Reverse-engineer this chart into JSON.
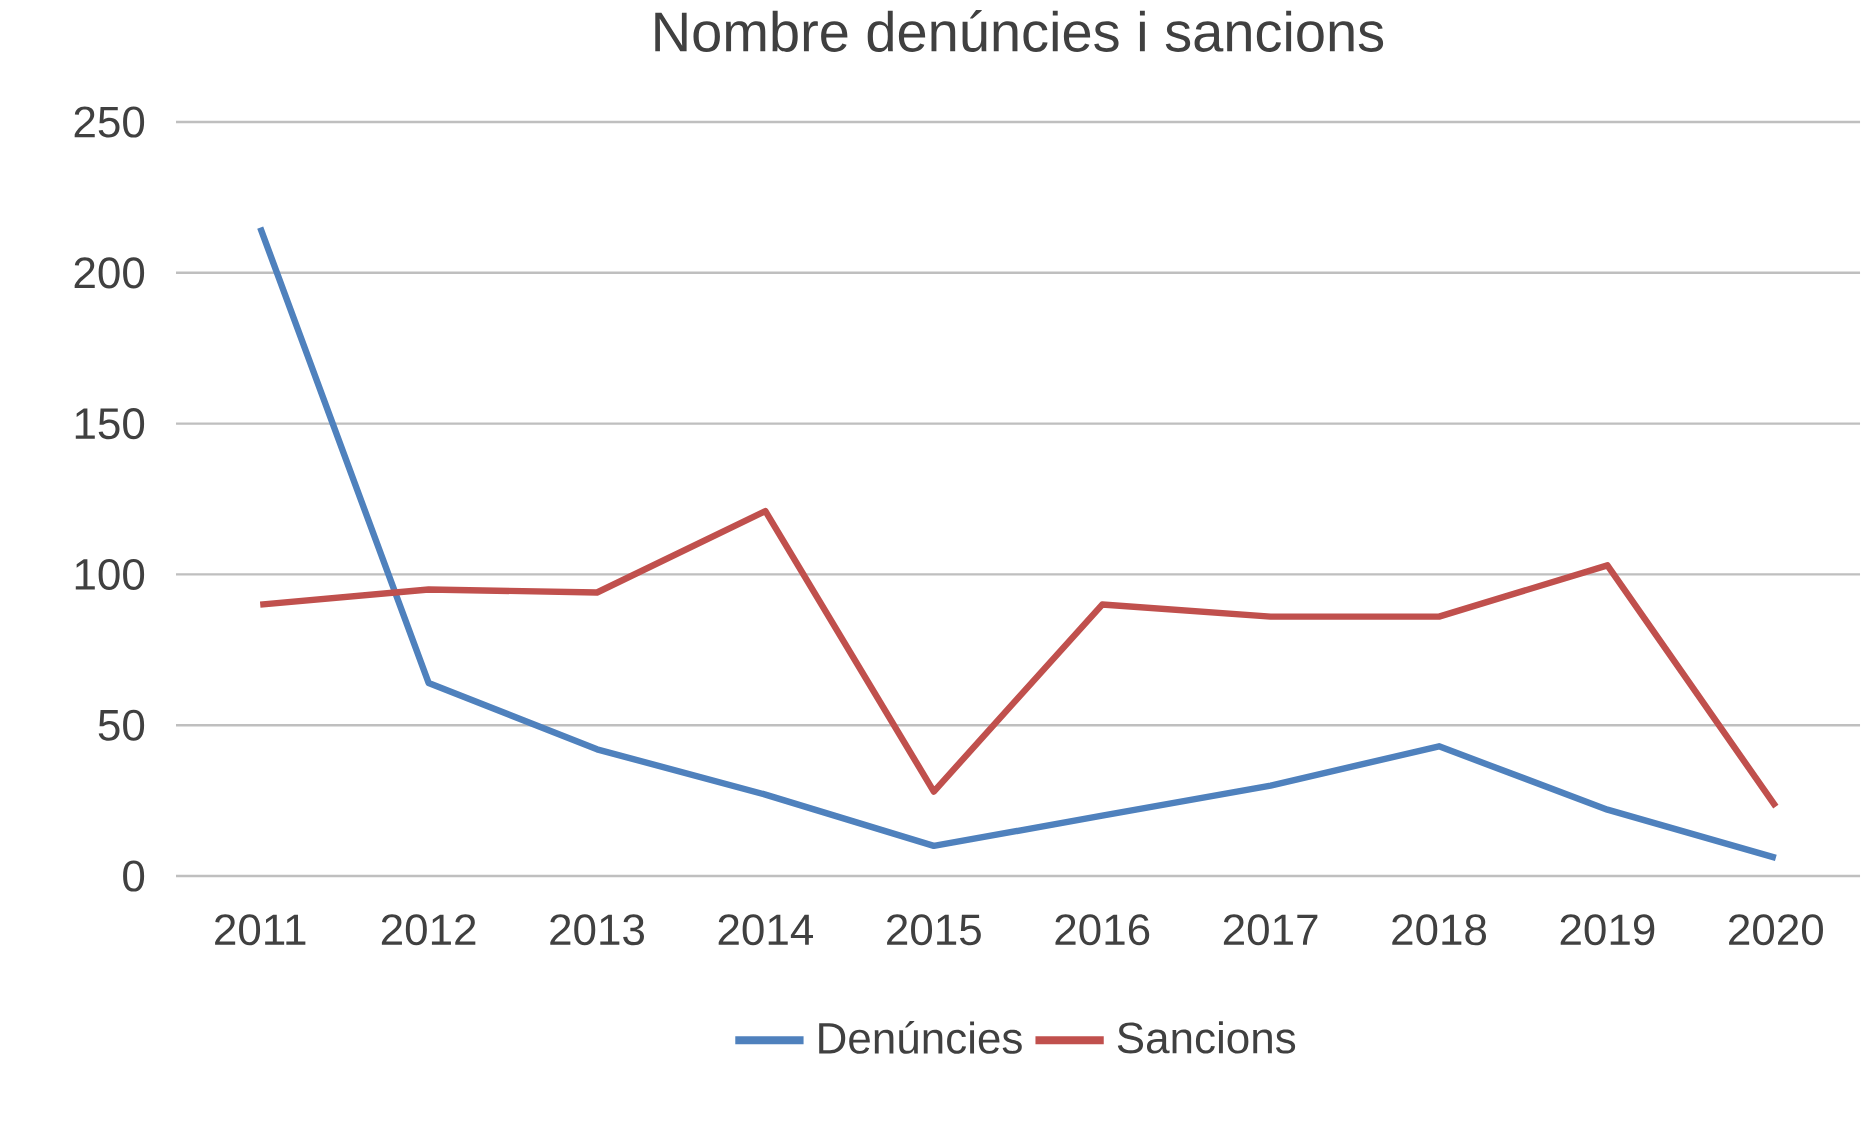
{
  "chart_data": {
    "type": "line",
    "title": "Nombre denúncies i sancions",
    "categories": [
      "2011",
      "2012",
      "2013",
      "2014",
      "2015",
      "2016",
      "2017",
      "2018",
      "2019",
      "2020"
    ],
    "series": [
      {
        "name": "Denúncies",
        "color": "#4f81bd",
        "values": [
          215,
          64,
          42,
          27,
          10,
          20,
          30,
          43,
          22,
          6
        ]
      },
      {
        "name": "Sancions",
        "color": "#c0504d",
        "values": [
          90,
          95,
          94,
          121,
          28,
          90,
          86,
          86,
          103,
          23
        ]
      }
    ],
    "ylim": [
      0,
      250
    ],
    "yticks": [
      0,
      50,
      100,
      150,
      200,
      250
    ],
    "grid": "y",
    "legend": "bottom",
    "marker": "none",
    "line_style": "solid"
  }
}
